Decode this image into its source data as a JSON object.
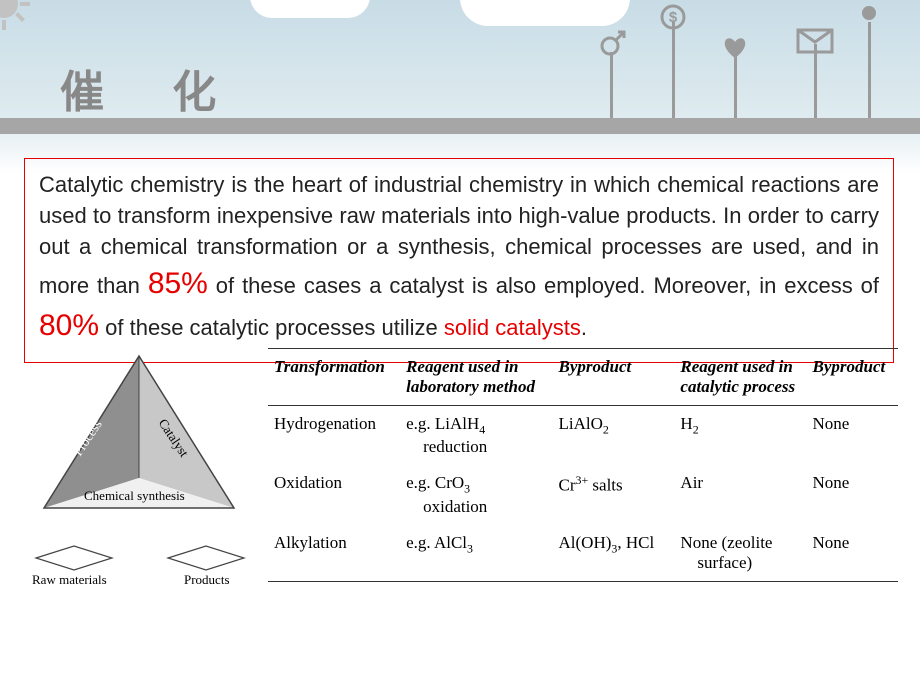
{
  "title": "催 化",
  "paragraph": {
    "part1": "Catalytic chemistry is the heart of industrial chemistry in which chemical reactions are used to transform inexpensive raw materials into high-value products. In order to carry out a chemical transformation or a synthesis, chemical processes are used, and in more than ",
    "pct1": "85%",
    "part2": " of these cases a catalyst is also employed. Moreover, in excess of ",
    "pct2": "80%",
    "part3": " of these catalytic processes utilize ",
    "red_term": "solid catalysts",
    "part4": "."
  },
  "diagram": {
    "left_face": "Process",
    "right_face": "Catalyst",
    "base": "Chemical synthesis",
    "bottom_left": "Raw materials",
    "bottom_right": "Products",
    "colors": {
      "left": "#8f8f8f",
      "right": "#c8c8c8",
      "front": "#f0f0f0",
      "line": "#444"
    }
  },
  "table": {
    "headers": [
      "Transformation",
      "Reagent used in laboratory method",
      "Byproduct",
      "Reagent used in catalytic process",
      "Byproduct"
    ],
    "rows": [
      {
        "t": "Hydrogenation",
        "r1": "e.g. LiAlH4 reduction",
        "r1_html": "e.g. LiAlH<span class='sub'>4</span><br>&nbsp;&nbsp;&nbsp;&nbsp;reduction",
        "bp1": "LiAlO2",
        "bp1_html": "LiAlO<span class='sub'>2</span>",
        "r2": "H2",
        "r2_html": "H<span class='sub'>2</span>",
        "bp2": "None"
      },
      {
        "t": "Oxidation",
        "r1": "e.g. CrO3 oxidation",
        "r1_html": "e.g. CrO<span class='sub'>3</span><br>&nbsp;&nbsp;&nbsp;&nbsp;oxidation",
        "bp1": "Cr3+ salts",
        "bp1_html": "Cr<span class='sup'>3+</span> salts",
        "r2": "Air",
        "r2_html": "Air",
        "bp2": "None"
      },
      {
        "t": "Alkylation",
        "r1": "e.g. AlCl3",
        "r1_html": "e.g. AlCl<span class='sub'>3</span>",
        "bp1": "Al(OH)3, HCl",
        "bp1_html": "Al(OH)<span class='sub'>3</span>, HCl",
        "r2": "None (zeolite surface)",
        "r2_html": "None (zeolite<br>&nbsp;&nbsp;&nbsp;&nbsp;surface)",
        "bp2": "None"
      }
    ]
  },
  "decor_icons": [
    "mars-icon",
    "dollar-icon",
    "heart-icon",
    "mail-icon",
    "dot-icon"
  ]
}
